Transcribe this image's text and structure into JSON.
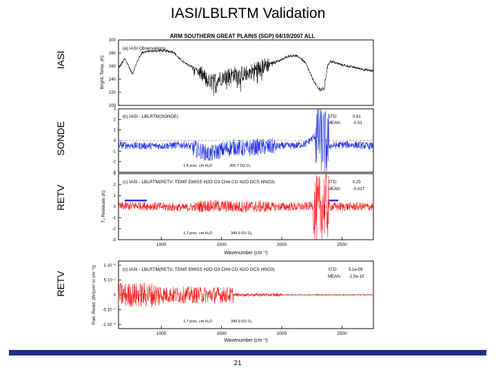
{
  "slide": {
    "title": "IASI/LBLRTM Validation",
    "page_number": "21",
    "side_labels": [
      "IASI",
      "SONDE",
      "RETV",
      "RETV"
    ]
  },
  "figure": {
    "header": "ARM SOUTHERN GREAT PLAINS (SGP)   04/19/2007   ALL",
    "xlabel": "Wavenumber (cm⁻¹)",
    "colors": {
      "iasi": "#000000",
      "sonde": "#1c2be0",
      "retv": "#ff1a1a",
      "marker": "#1c2be0"
    }
  },
  "chart_data": [
    {
      "type": "line",
      "id": "a",
      "title": "(a) IASI Observations",
      "ylabel": "Bright. Temp. (K)",
      "ylim": [
        195,
        300
      ],
      "yticks": [
        "200",
        "220",
        "240",
        "260",
        "280",
        "300"
      ],
      "xlim": [
        645,
        2760
      ],
      "x_coarse": [
        645,
        700,
        760,
        800,
        840,
        900,
        1000,
        1100,
        1150,
        1200,
        1250,
        1300,
        1400,
        1500,
        1600,
        1700,
        1800,
        1900,
        2000,
        2050,
        2100,
        2150,
        2200,
        2250,
        2300,
        2350,
        2380,
        2400,
        2500,
        2600,
        2700,
        2760
      ],
      "y_coarse": [
        255,
        270,
        245,
        265,
        280,
        282,
        283,
        281,
        270,
        262,
        258,
        252,
        232,
        240,
        245,
        246,
        254,
        262,
        268,
        274,
        275,
        272,
        262,
        240,
        222,
        220,
        258,
        266,
        260,
        256,
        252,
        250
      ]
    },
    {
      "type": "line",
      "id": "b",
      "title": "(b) IASI - LBLRTM(SONDE)",
      "ylabel": "",
      "ylim": [
        -3,
        3
      ],
      "yticks": [
        "-3",
        "-2",
        "-1",
        "0",
        "1",
        "2",
        "3"
      ],
      "xlim": [
        645,
        2760
      ],
      "stats": {
        "std_label": "STD:",
        "std": "0.61",
        "mean_label": "MEAN:",
        "mean": "-0.51"
      },
      "annotations": [
        "1.8 prec. cm H₂O",
        "356.7 DU O₃"
      ],
      "x_coarse": [
        645,
        800,
        1000,
        1200,
        1400,
        1500,
        1600,
        1700,
        1800,
        1900,
        2000,
        2100,
        2200,
        2250,
        2300,
        2350,
        2400,
        2500,
        2600,
        2700,
        2760
      ],
      "y_coarse": [
        -0.4,
        -0.5,
        -0.5,
        -0.4,
        -1.3,
        -0.9,
        -0.6,
        -0.8,
        -0.6,
        -0.6,
        -0.5,
        -0.5,
        -0.3,
        0.2,
        0.6,
        -0.2,
        -0.5,
        -0.4,
        -0.4,
        -0.5,
        -0.5
      ]
    },
    {
      "type": "line",
      "id": "c1",
      "title": "(c) IASI - LBLRTM(RETV: TEMP EMISS H2O O3 CH4 CO N2O OCS HNO3)",
      "ylabel": "T₂ Residuals (K)",
      "ylim": [
        -3,
        3
      ],
      "yticks": [
        "-3",
        "-2",
        "-1",
        "0",
        "1",
        "2",
        "3"
      ],
      "xlim": [
        645,
        2760
      ],
      "xticks": [
        "1000",
        "1500",
        "2000",
        "2500"
      ],
      "stats": {
        "std_label": "STD:",
        "std": "0.25",
        "mean_label": "MEAN:",
        "mean": "-0.017"
      },
      "annotations": [
        "1.7 prec. cm H₂O",
        "349.9 DU O₃"
      ],
      "x_coarse": [
        645,
        800,
        1000,
        1200,
        1400,
        1600,
        1800,
        2000,
        2100,
        2200,
        2250,
        2300,
        2350,
        2400,
        2500,
        2600,
        2700,
        2760
      ],
      "y_coarse": [
        0.0,
        0.1,
        0.0,
        -0.1,
        0.1,
        0.0,
        0.0,
        0.0,
        0.0,
        0.0,
        0.1,
        -0.5,
        0.3,
        0.0,
        0.0,
        0.0,
        0.0,
        0.0
      ]
    },
    {
      "type": "line",
      "id": "c2",
      "title": "(c) IASI - LBLRTM(RETV: TEMP EMISS H2O O3 CH4 CO N2O OCS HNO3)",
      "ylabel": "Rad. Resid. (W/(cm² sr cm⁻¹))",
      "ylim": [
        -1.2e-06,
        1.2e-06
      ],
      "yticks": [
        "1·10⁻⁶",
        "5·10⁻⁷",
        "0",
        "-5·10⁻⁷",
        "-1·10⁻⁶"
      ],
      "xlim": [
        645,
        2760
      ],
      "xticks": [
        "1000",
        "1500",
        "2000",
        "2500"
      ],
      "stats": {
        "std_label": "STD:",
        "std": "5.1e-09",
        "mean_label": "MEAN:",
        "mean": "-2.5e-10"
      },
      "annotations": [
        "1.7 prec. cm H₂O",
        "349.9 DU O₃"
      ],
      "x_coarse": [
        645,
        800,
        1000,
        1200,
        1400,
        1600,
        1800,
        2000,
        2200,
        2400,
        2600,
        2760
      ],
      "y_coarse": [
        0,
        0,
        0,
        0,
        0,
        0,
        0,
        0,
        0,
        0,
        0,
        0
      ]
    }
  ]
}
